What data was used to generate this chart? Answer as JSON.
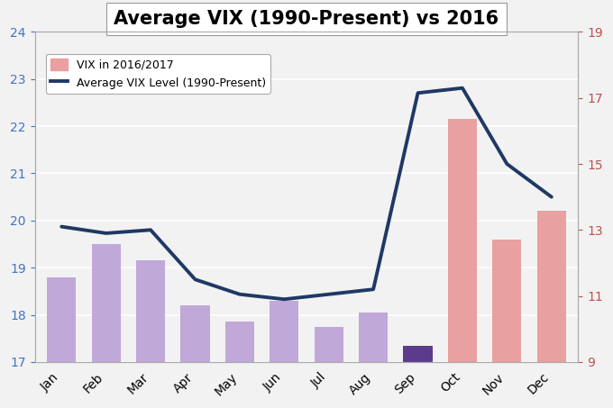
{
  "title": "Average VIX (1990-Present) vs 2016",
  "months": [
    "Jan",
    "Feb",
    "Mar",
    "Apr",
    "May",
    "Jun",
    "Jul",
    "Aug",
    "Sep",
    "Oct",
    "Nov",
    "Dec"
  ],
  "bar_values": [
    18.8,
    19.5,
    19.15,
    18.2,
    17.85,
    18.3,
    17.75,
    18.05,
    17.35,
    22.15,
    19.6,
    20.2
  ],
  "bar_colors": [
    "#c0a8d8",
    "#c0a8d8",
    "#c0a8d8",
    "#c0a8d8",
    "#c0a8d8",
    "#c0a8d8",
    "#c0a8d8",
    "#c0a8d8",
    "#5c3a8c",
    "#e8a0a0",
    "#e8a0a0",
    "#e8a0a0"
  ],
  "line_values": [
    13.1,
    12.9,
    13.0,
    11.5,
    11.05,
    10.9,
    11.05,
    11.2,
    17.15,
    17.3,
    15.0,
    14.0
  ],
  "left_ylim": [
    17,
    24
  ],
  "right_ylim": [
    9.0,
    19.0
  ],
  "left_yticks": [
    17,
    18,
    19,
    20,
    21,
    22,
    23,
    24
  ],
  "right_yticks": [
    9.0,
    11.0,
    13.0,
    15.0,
    17.0,
    19.0
  ],
  "left_tick_color": "#4472c4",
  "right_tick_color": "#c0504d",
  "line_color": "#1f3864",
  "line_width": 2.8,
  "legend_bar_label": "VIX in 2016/2017",
  "legend_line_label": "Average VIX Level (1990-Present)",
  "legend_bar_color": "#e8a0a0",
  "background_color": "#f2f2f2",
  "title_fontsize": 15,
  "tick_fontsize": 10,
  "grid_color": "#ffffff",
  "bar_bottom": 17
}
